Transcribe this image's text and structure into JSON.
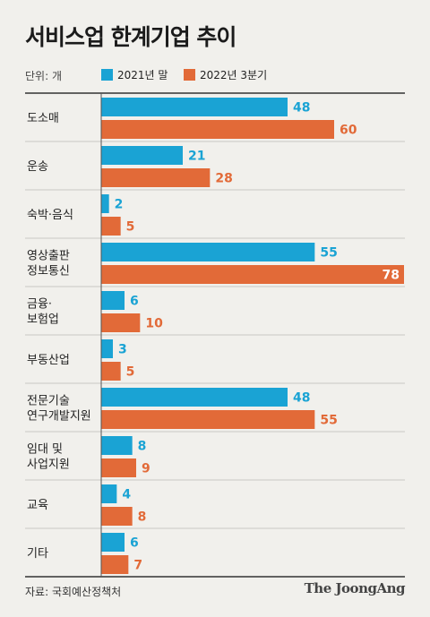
{
  "title": "서비스업 한계기업 추이",
  "unit_label": "단위: 개",
  "source": "자료: 국회예산정책처",
  "brand": "The JoongAng",
  "colors": {
    "series_2021": "#1aa3d4",
    "series_2022": "#e26a38",
    "background": "#f1f0ec"
  },
  "chart_data": {
    "type": "bar",
    "orientation": "horizontal",
    "title": "서비스업 한계기업 추이",
    "categories": [
      [
        "도소매"
      ],
      [
        "운송"
      ],
      [
        "숙박·음식"
      ],
      [
        "영상출판",
        "정보통신"
      ],
      [
        "금융·",
        "보험업"
      ],
      [
        "부동산업"
      ],
      [
        "전문기술",
        "연구개발지원"
      ],
      [
        "임대 및",
        "사업지원"
      ],
      [
        "교육"
      ],
      [
        "기타"
      ]
    ],
    "series": [
      {
        "name": "2021년 말",
        "values": [
          48,
          21,
          2,
          55,
          6,
          3,
          48,
          8,
          4,
          6
        ]
      },
      {
        "name": "2022년 3분기",
        "values": [
          60,
          28,
          5,
          78,
          10,
          5,
          55,
          9,
          8,
          7
        ]
      }
    ],
    "xlim": [
      0,
      78
    ],
    "legend_position": "top-left",
    "grid": false
  }
}
